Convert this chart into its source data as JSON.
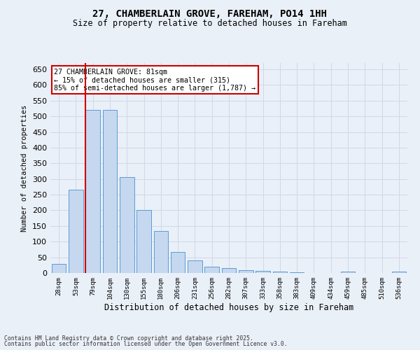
{
  "title": "27, CHAMBERLAIN GROVE, FAREHAM, PO14 1HH",
  "subtitle": "Size of property relative to detached houses in Fareham",
  "xlabel": "Distribution of detached houses by size in Fareham",
  "ylabel": "Number of detached properties",
  "categories": [
    "28sqm",
    "53sqm",
    "79sqm",
    "104sqm",
    "130sqm",
    "155sqm",
    "180sqm",
    "206sqm",
    "231sqm",
    "256sqm",
    "282sqm",
    "307sqm",
    "333sqm",
    "358sqm",
    "383sqm",
    "409sqm",
    "434sqm",
    "459sqm",
    "485sqm",
    "510sqm",
    "536sqm"
  ],
  "values": [
    30,
    265,
    520,
    520,
    305,
    200,
    135,
    68,
    40,
    20,
    15,
    10,
    7,
    5,
    3,
    1,
    0,
    4,
    1,
    0,
    4
  ],
  "bar_color": "#c5d8f0",
  "bar_edgecolor": "#5b9bd5",
  "grid_color": "#d0d8e8",
  "background_color": "#eaf0f8",
  "property_line_index": 2,
  "annotation_title": "27 CHAMBERLAIN GROVE: 81sqm",
  "annotation_line1": "← 15% of detached houses are smaller (315)",
  "annotation_line2": "85% of semi-detached houses are larger (1,787) →",
  "annotation_box_color": "#ffffff",
  "annotation_box_edgecolor": "#cc0000",
  "line_color": "#cc0000",
  "footer_line1": "Contains HM Land Registry data © Crown copyright and database right 2025.",
  "footer_line2": "Contains public sector information licensed under the Open Government Licence v3.0.",
  "ylim": [
    0,
    670
  ],
  "yticks": [
    0,
    50,
    100,
    150,
    200,
    250,
    300,
    350,
    400,
    450,
    500,
    550,
    600,
    650
  ]
}
